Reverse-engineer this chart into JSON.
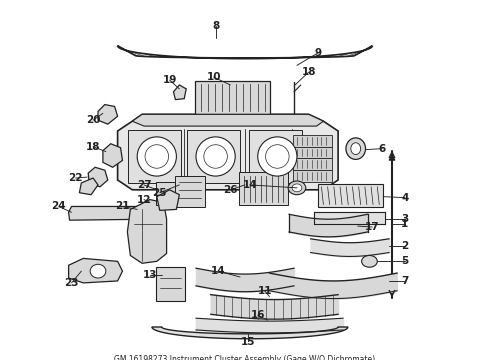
{
  "title": "GM 16198273 Instrument Cluster Assembly (Gage W/O Dichromate)",
  "bg_color": "#ffffff",
  "line_color": "#222222",
  "fig_width": 4.9,
  "fig_height": 3.6,
  "dpi": 100,
  "label_fontsize": 7.5,
  "label_fontweight": "bold",
  "callout_lw": 0.7,
  "part_lw": 0.9,
  "part_fill": "#e8e8e8",
  "part_fill_dark": "#cccccc"
}
